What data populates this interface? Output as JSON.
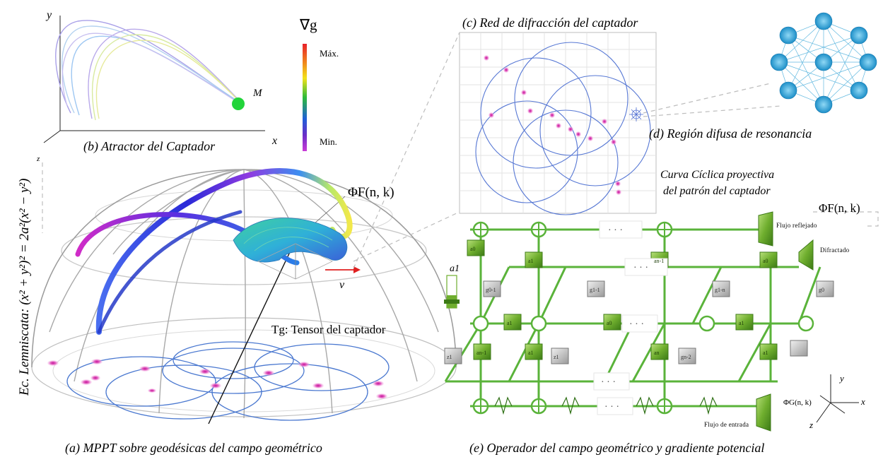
{
  "captions": {
    "a": "(a)  MPPT sobre geodésicas del campo geométrico",
    "b": "(b) Atractor del Captador",
    "c": "(c) Red de difracción del captador",
    "d": "(d) Región difusa de resonancia",
    "e": "(e) Operador del campo geométrico y gradiente potencial"
  },
  "lemniscate": "Ec. Lemniscata: (x² + y²)² = 2a²(x² − y²)",
  "colorbar": {
    "title": "∇g",
    "max": "Máx.",
    "min": "Min.",
    "colors": [
      "#e8202a",
      "#f08a1c",
      "#f2e21a",
      "#2dba3a",
      "#1f5fd8",
      "#6a2ec8",
      "#c93bd6"
    ]
  },
  "attractor": {
    "point_label": "M",
    "x_axis": "x",
    "y_axis": "y",
    "z_axis": "z"
  },
  "dome": {
    "phi_label": "ΦF(n, k)",
    "v_label": "v",
    "tensor_label": "Tg: Tensor del captador"
  },
  "diffraction": {
    "curve_label_1": "Curva Cíclica proyectiva",
    "curve_label_2": "del patrón del captador",
    "phi_label": "ΦF(n, k)"
  },
  "operator": {
    "a1": "a1",
    "flujo_reflejado": "Flujo reflejado",
    "difractado": "Difractado",
    "flujo_entrada": "Flujo de entrada",
    "phi_g": "ΦG(n, k)",
    "ellipsis": "· · ·",
    "axes": {
      "x": "x",
      "y": "y",
      "z": "z"
    },
    "green_blocks": [
      "a0",
      "a1",
      "an-1",
      "a0",
      "a1",
      "a0",
      "a1",
      "an-1",
      "a1",
      "an",
      "a1"
    ],
    "gray_blocks": [
      "g0-1",
      "g1-1",
      "g1-n",
      "g0",
      "z1",
      "z1",
      "gn-2"
    ]
  }
}
